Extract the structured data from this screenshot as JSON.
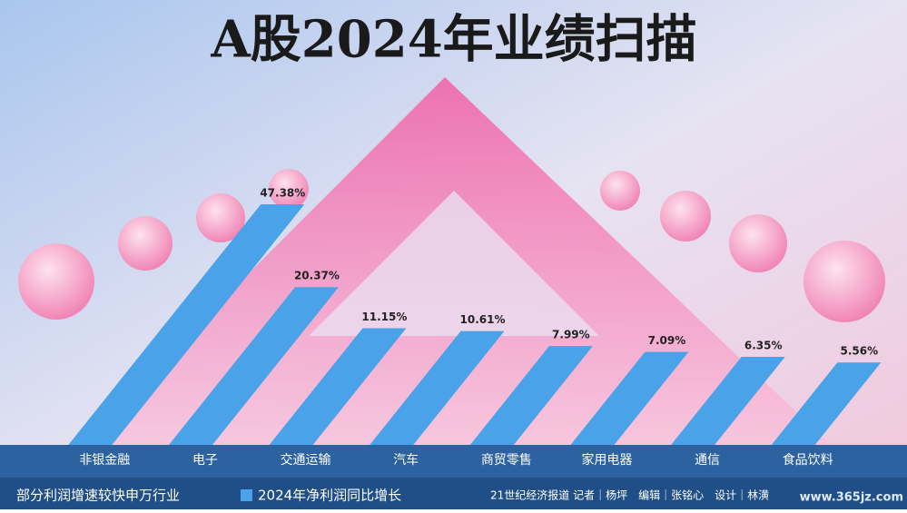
{
  "chart_data": {
    "type": "bar",
    "title": "A股2024年业绩扫描",
    "subtitle": "部分利润增速较快申万行业",
    "legend": "2024年净利润同比增长",
    "credit": "21世纪经济报道 记者｜杨坪　编辑｜张铭心　设计｜林潢",
    "watermark": "www.365jz.com",
    "categories": [
      "非银金融",
      "电子",
      "交通运输",
      "汽车",
      "商贸零售",
      "家用电器",
      "通信",
      "食品饮料"
    ],
    "values": [
      47.38,
      20.37,
      11.15,
      10.61,
      7.99,
      7.09,
      6.35,
      5.56
    ],
    "value_labels": [
      "47.38%",
      "20.37%",
      "11.15%",
      "10.61%",
      "7.99%",
      "7.09%",
      "6.35%",
      "5.56%"
    ],
    "color": "#4aa3e8"
  }
}
